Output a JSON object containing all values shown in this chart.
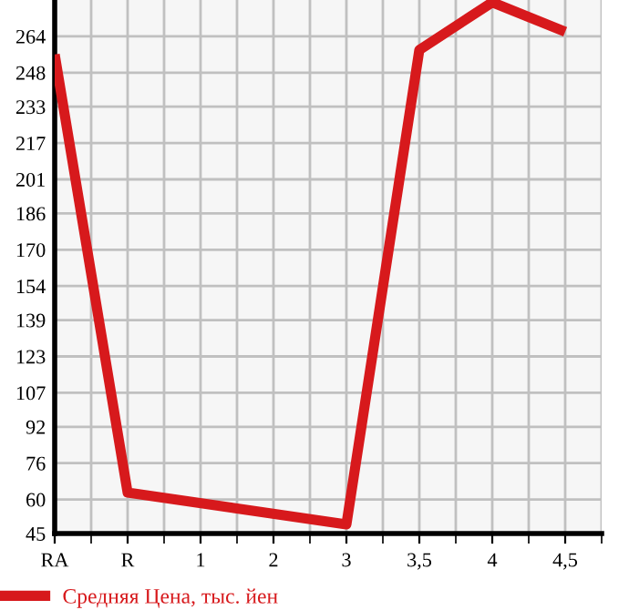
{
  "chart_data": {
    "type": "line",
    "categories": [
      "RA",
      "R",
      "1",
      "2",
      "3",
      "3,5",
      "4",
      "4,5"
    ],
    "series": [
      {
        "name": "Средняя Цена, тыс. йен",
        "color": "#d7191c",
        "values": [
          256,
          63,
          null,
          null,
          49,
          258,
          279,
          266
        ]
      }
    ],
    "ylim": [
      45,
      280
    ],
    "yticks": [
      45,
      60,
      76,
      92,
      107,
      123,
      139,
      154,
      170,
      186,
      201,
      217,
      233,
      248,
      264
    ],
    "grid": true,
    "legend": "bottom",
    "marker": "none",
    "line_style": "solid"
  }
}
